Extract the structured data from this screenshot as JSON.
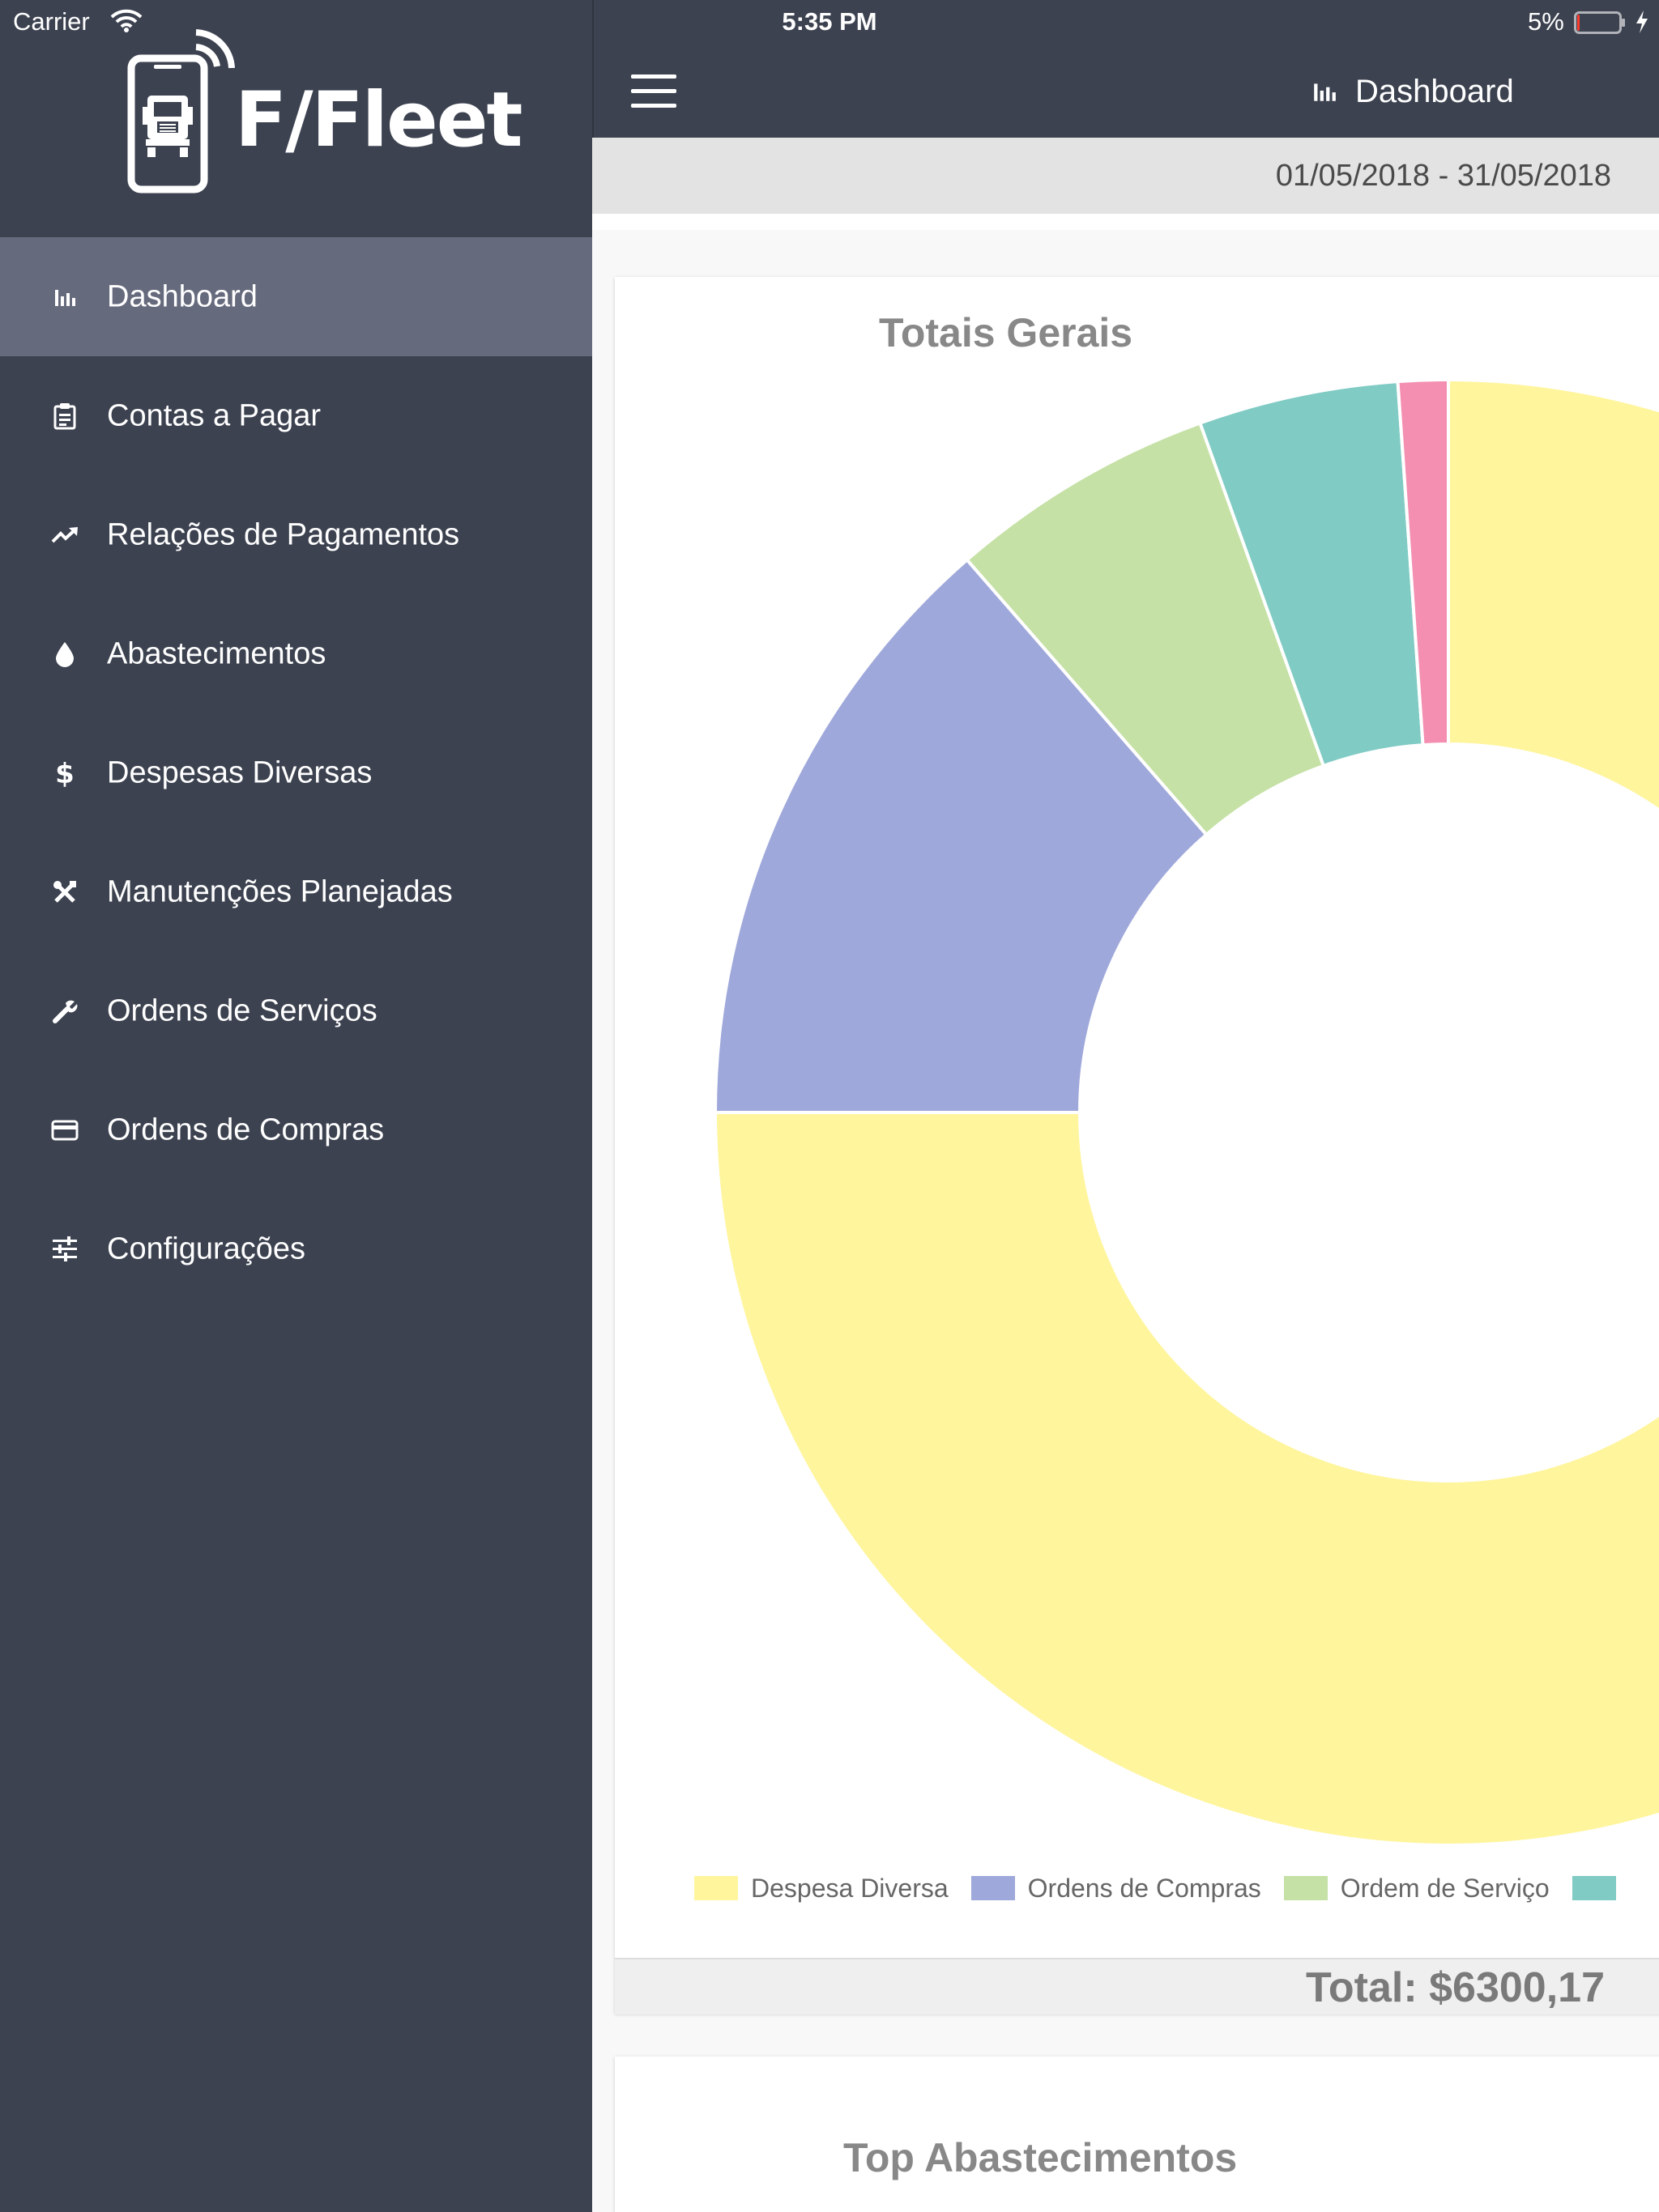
{
  "status_bar": {
    "carrier": "Carrier",
    "time": "5:35 PM",
    "battery_percent": "5%",
    "battery_level": 0.05,
    "icons": [
      "wifi-icon",
      "battery-icon",
      "charging-bolt-icon"
    ]
  },
  "sidebar": {
    "logo_text": "F/Fleet",
    "items": [
      {
        "label": "Dashboard",
        "icon": "bar-chart-icon",
        "active": true
      },
      {
        "label": "Contas a Pagar",
        "icon": "clipboard-icon",
        "active": false
      },
      {
        "label": "Relações de Pagamentos",
        "icon": "trending-up-icon",
        "active": false
      },
      {
        "label": "Abastecimentos",
        "icon": "drop-icon",
        "active": false
      },
      {
        "label": "Despesas Diversas",
        "icon": "dollar-icon",
        "active": false
      },
      {
        "label": "Manutenções Planejadas",
        "icon": "tools-icon",
        "active": false
      },
      {
        "label": "Ordens de Serviços",
        "icon": "wrench-icon",
        "active": false
      },
      {
        "label": "Ordens de Compras",
        "icon": "credit-card-icon",
        "active": false
      },
      {
        "label": "Configurações",
        "icon": "sliders-icon",
        "active": false
      }
    ]
  },
  "header": {
    "title": "Dashboard",
    "title_icon": "bar-chart-icon",
    "menu_icon": "hamburger-icon"
  },
  "date_range": "01/05/2018 - 31/05/2018",
  "colors": {
    "sidebar_bg": "#3c4250",
    "active_item_bg": "#666a7d",
    "slice_yellow": "#fff59d",
    "slice_blue": "#9fa8da",
    "slice_green": "#c5e1a5",
    "slice_teal": "#80cbc4",
    "slice_pink": "#f48fb1"
  },
  "totals_card": {
    "title": "Totais Gerais",
    "total": "Total: $6300,17"
  },
  "chart_data": {
    "type": "doughnut",
    "title": "Totais Gerais",
    "categories": [
      "Despesa Diversa",
      "Ordens de Compras",
      "Ordem de Serviço",
      "",
      ""
    ],
    "values": [
      75.0,
      13.6,
      5.9,
      4.4,
      1.1
    ],
    "colors": [
      "#fff59d",
      "#9fa8da",
      "#c5e1a5",
      "#80cbc4",
      "#f48fb1"
    ],
    "legend_position": "bottom"
  },
  "legend": [
    {
      "label": "Despesa Diversa",
      "color": "#fff59d"
    },
    {
      "label": "Ordens de Compras",
      "color": "#9fa8da"
    },
    {
      "label": "Ordem de Serviço",
      "color": "#c5e1a5"
    },
    {
      "label": "",
      "color": "#80cbc4"
    }
  ],
  "second_card": {
    "title": "Top Abastecimentos"
  }
}
